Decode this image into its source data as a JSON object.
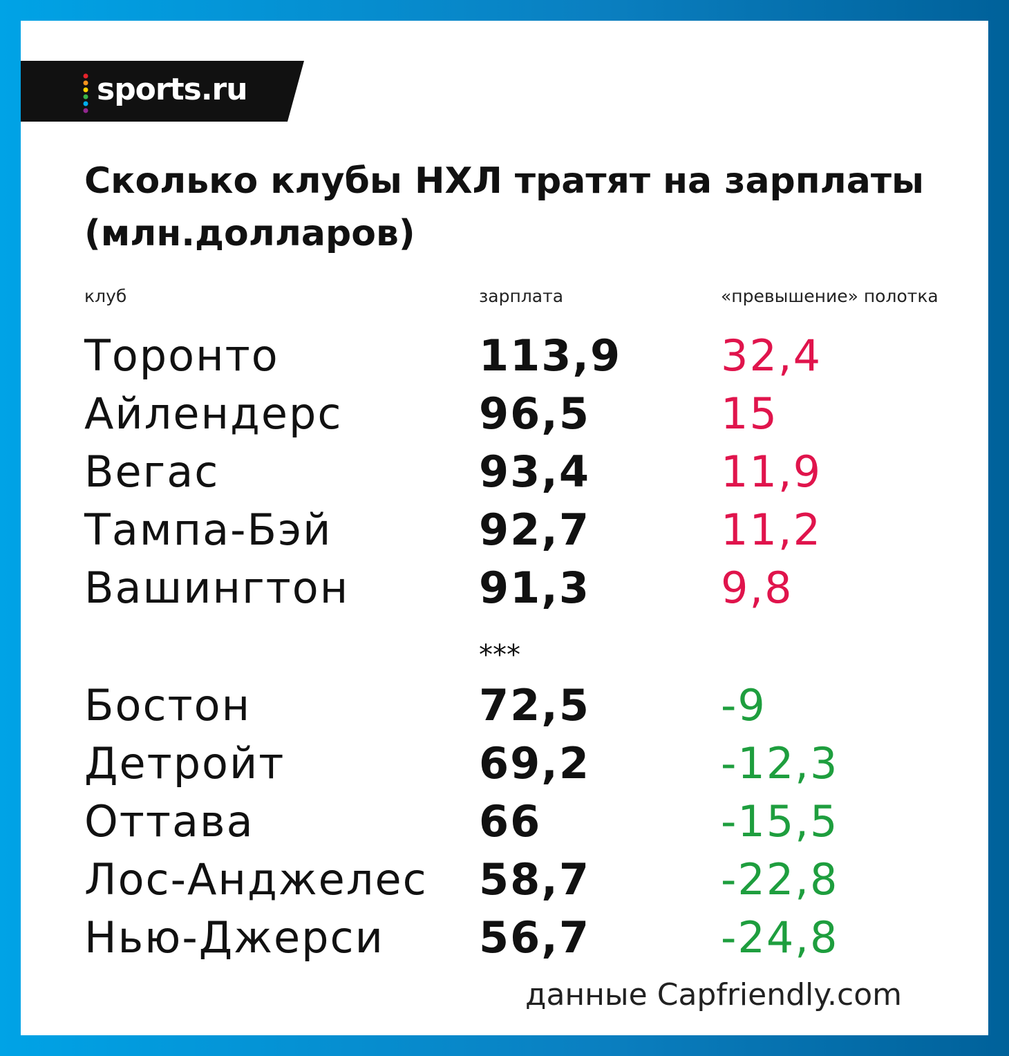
{
  "header": {
    "brand": "sports.ru",
    "title": "Сколько клубы НХЛ тратят на зарплаты",
    "subtitle": "(млн.долларов)"
  },
  "table": {
    "columns": [
      "клуб",
      "зарплата",
      "«превышение» полотка"
    ],
    "top_rows": [
      [
        "Торонто",
        "113,9",
        "32,4"
      ],
      [
        "Айлендерс",
        "96,5",
        "15"
      ],
      [
        "Вегас",
        "93,4",
        "11,9"
      ],
      [
        "Тампа-Бэй",
        "92,7",
        "11,2"
      ],
      [
        "Вашингтон",
        "91,3",
        "9,8"
      ]
    ],
    "separator": "***",
    "bottom_rows": [
      [
        "Бостон",
        "72,5",
        "-9"
      ],
      [
        "Детройт",
        "69,2",
        "-12,3"
      ],
      [
        "Оттава",
        "66",
        "-15,5"
      ],
      [
        "Лос-Анджелес",
        "58,7",
        "-22,8"
      ],
      [
        "Нью-Джерси",
        "56,7",
        "-24,8"
      ]
    ]
  },
  "footer": {
    "source": "данные Capfriendly.com"
  }
}
